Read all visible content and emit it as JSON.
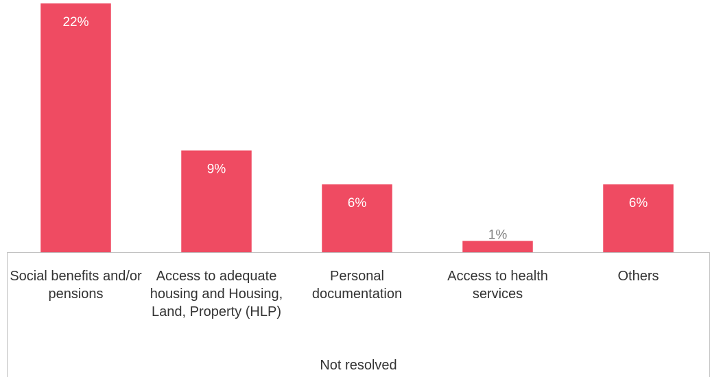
{
  "chart_data": {
    "type": "bar",
    "categories": [
      "Social benefits and/or pensions",
      "Access to adequate housing and Housing, Land, Property (HLP)",
      "Personal documentation",
      "Access to health services",
      "Others"
    ],
    "values": [
      22,
      9,
      6,
      1,
      6
    ],
    "value_labels": [
      "22%",
      "9%",
      "6%",
      "1%",
      "6%"
    ],
    "group_label": "Not resolved",
    "color": "#ef4b62"
  }
}
